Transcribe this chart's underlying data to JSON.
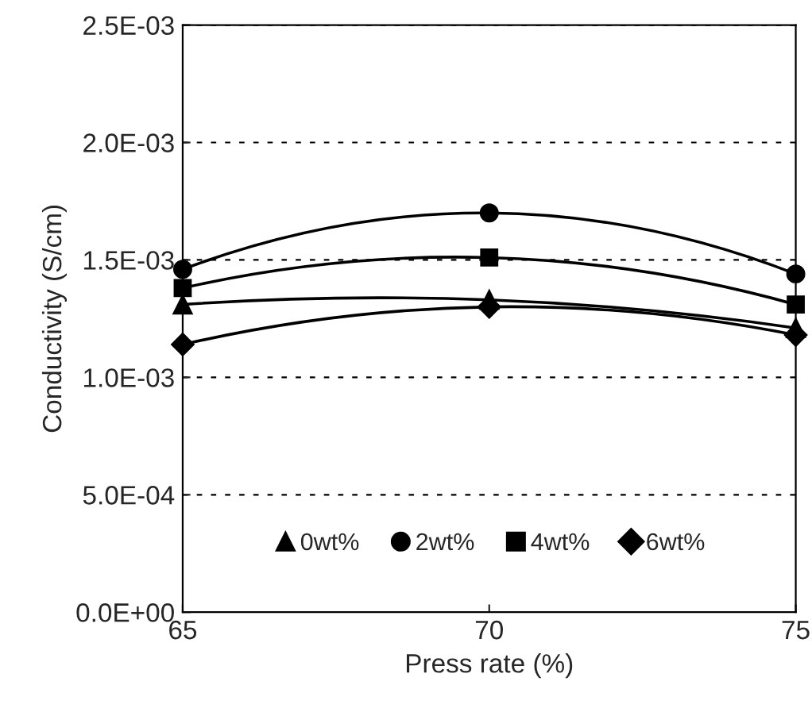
{
  "chart_data": {
    "type": "line",
    "xlabel": "Press rate (%)",
    "ylabel": "Conductivity (S/cm)",
    "x": [
      65,
      70,
      75
    ],
    "series": [
      {
        "name": "0wt%",
        "color": "#000000",
        "marker": "triangle",
        "values": [
          0.00131,
          0.00133,
          0.00121
        ]
      },
      {
        "name": "2wt%",
        "color": "#000000",
        "marker": "circle",
        "values": [
          0.00146,
          0.0017,
          0.00144
        ]
      },
      {
        "name": "4wt%",
        "color": "#000000",
        "marker": "square",
        "values": [
          0.00138,
          0.00151,
          0.00131
        ]
      },
      {
        "name": "6wt%",
        "color": "#000000",
        "marker": "diamond",
        "values": [
          0.00114,
          0.0013,
          0.00118
        ]
      }
    ],
    "xlim": [
      65,
      75
    ],
    "xticks": [
      65,
      70,
      75
    ],
    "ylim": [
      0,
      0.0025
    ],
    "yticks": [
      {
        "value": 0,
        "label": "0.0E+00"
      },
      {
        "value": 0.0005,
        "label": "5.0E-04"
      },
      {
        "value": 0.001,
        "label": "1.0E-03"
      },
      {
        "value": 0.0015,
        "label": "1.5E-03"
      },
      {
        "value": 0.002,
        "label": "2.0E-03"
      },
      {
        "value": 0.0025,
        "label": "2.5E-03"
      }
    ],
    "grid": "y",
    "legend": "bottom"
  }
}
